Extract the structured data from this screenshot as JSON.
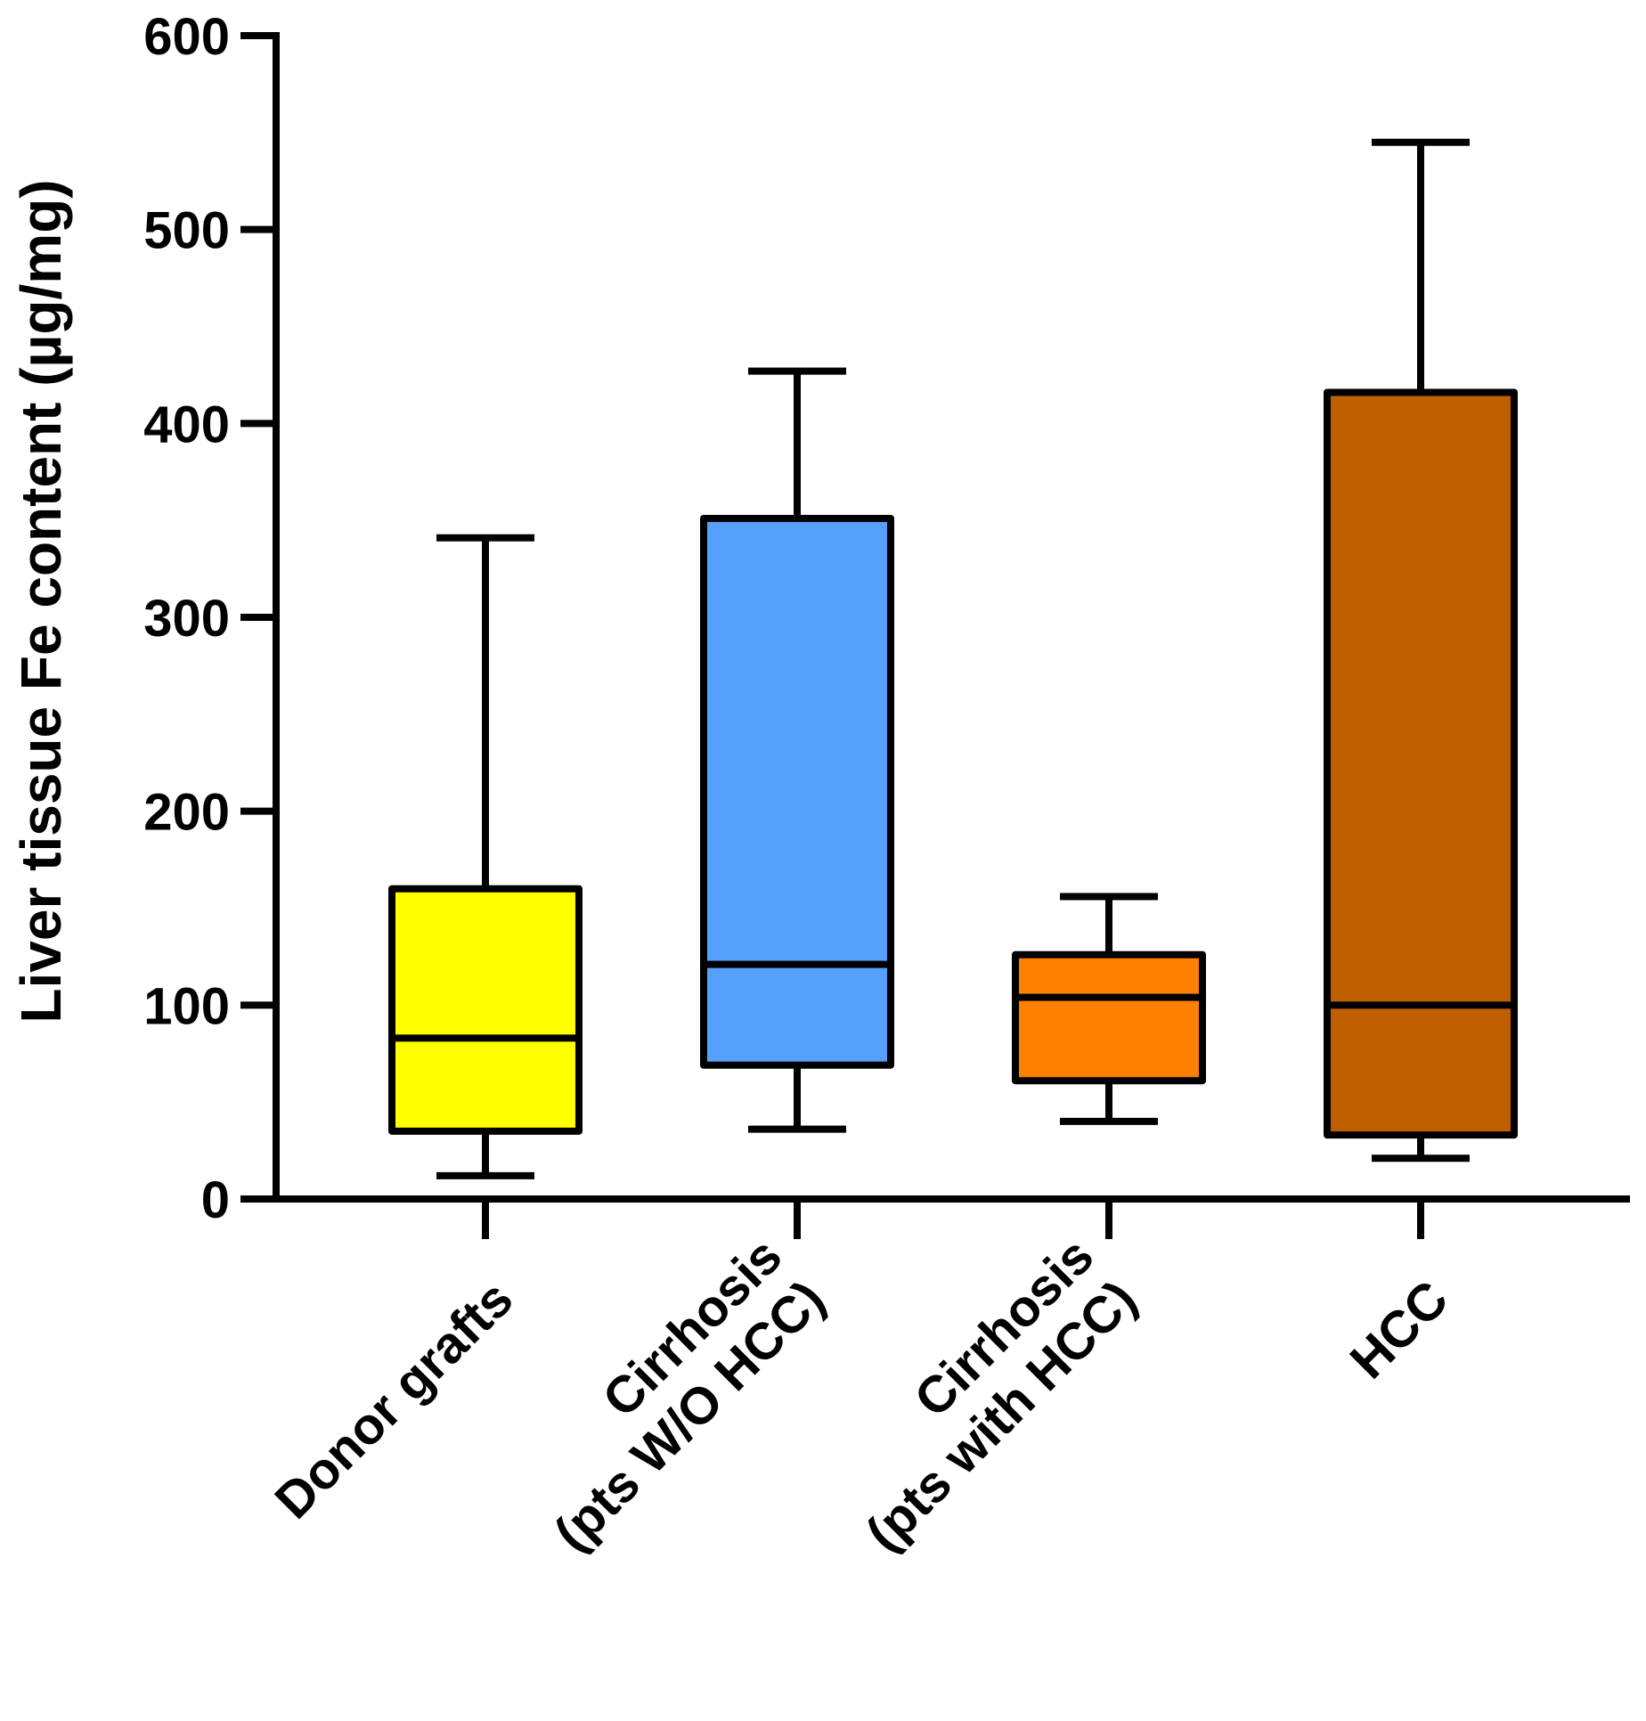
{
  "chart_data": {
    "type": "box",
    "title": "",
    "xlabel": "",
    "ylabel": "Liver tissue Fe content (µg/mg)",
    "ylim": [
      0,
      600
    ],
    "yticks": [
      0,
      100,
      200,
      300,
      400,
      500,
      600
    ],
    "grid": false,
    "categories": [
      {
        "lines": [
          "Donor grafts"
        ]
      },
      {
        "lines": [
          "Cirrhosis",
          "(pts W/O HCC)"
        ]
      },
      {
        "lines": [
          "Cirrhosis",
          "(pts with HCC)"
        ]
      },
      {
        "lines": [
          "HCC"
        ]
      }
    ],
    "boxes": [
      {
        "name": "Donor grafts",
        "min": 12,
        "q1": 35,
        "median": 83,
        "q3": 160,
        "max": 341,
        "color": "#ffff00"
      },
      {
        "name": "Cirrhosis (pts W/O HCC)",
        "min": 36,
        "q1": 69,
        "median": 121,
        "q3": 351,
        "max": 427,
        "color": "#55a0fb"
      },
      {
        "name": "Cirrhosis (pts with HCC)",
        "min": 40,
        "q1": 61,
        "median": 104,
        "q3": 126,
        "max": 156,
        "color": "#ff7f00"
      },
      {
        "name": "HCC",
        "min": 21,
        "q1": 33,
        "median": 100,
        "q3": 416,
        "max": 545,
        "color": "#bf5f00"
      }
    ]
  }
}
